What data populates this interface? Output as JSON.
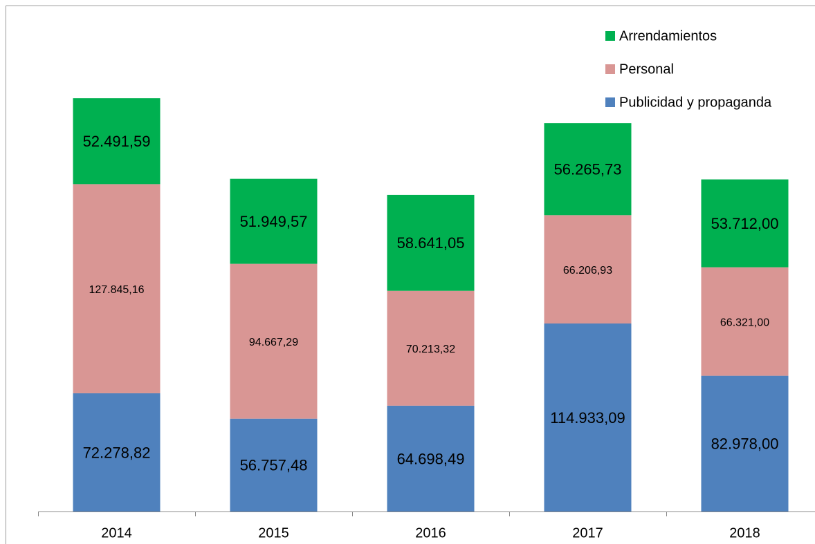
{
  "chart_data": {
    "type": "stacked_bar",
    "categories": [
      "2014",
      "2015",
      "2016",
      "2017",
      "2018"
    ],
    "series": [
      {
        "name": "Publicidad y propaganda",
        "color": "#4f81bd",
        "values": [
          72278.82,
          56757.48,
          64698.49,
          114933.09,
          82978.0
        ],
        "value_labels": [
          "72.278,82",
          "56.757,48",
          "64.698,49",
          "114.933,09",
          "82.978,00"
        ]
      },
      {
        "name": "Personal",
        "color": "#d99694",
        "values": [
          127845.16,
          94667.29,
          70213.32,
          66206.93,
          66321.0
        ],
        "value_labels": [
          "127.845,16",
          "94.667,29",
          "70.213,32",
          "66.206,93",
          "66.321,00"
        ]
      },
      {
        "name": "Arrendamientos",
        "color": "#00b050",
        "values": [
          52491.59,
          51949.57,
          58641.05,
          56265.73,
          53712.0
        ],
        "value_labels": [
          "52.491,59",
          "51.949,57",
          "58.641,05",
          "56.265,73",
          "53.712,00"
        ]
      }
    ],
    "ylim": [
      0,
      300000
    ],
    "legend": "top-right"
  }
}
